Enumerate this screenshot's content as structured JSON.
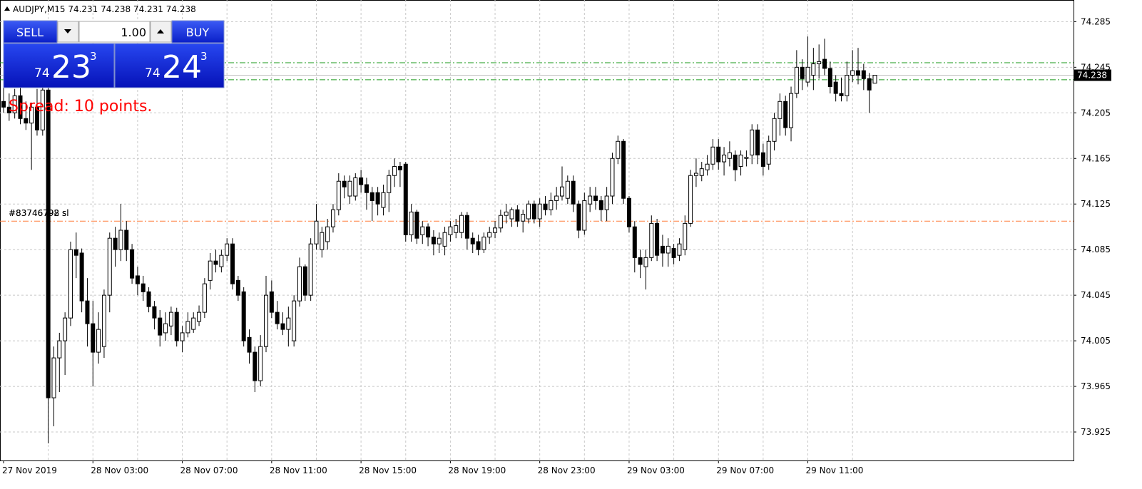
{
  "chart_data": {
    "type": "candlestick",
    "title": "AUDJPY,M15  74.231 74.238 74.231 74.238",
    "categories": [
      "27 Nov 2019",
      null,
      null,
      null,
      null,
      null,
      null,
      null,
      null,
      null,
      null,
      null,
      null,
      null,
      null,
      null,
      "28 Nov 03:00",
      null,
      null,
      null,
      null,
      null,
      null,
      null,
      null,
      null,
      null,
      null,
      null,
      null,
      null,
      null,
      "28 Nov 07:00",
      null,
      null,
      null,
      null,
      null,
      null,
      null,
      null,
      null,
      null,
      null,
      null,
      null,
      null,
      null,
      "28 Nov 11:00",
      null,
      null,
      null,
      null,
      null,
      null,
      null,
      null,
      null,
      null,
      null,
      null,
      null,
      null,
      null,
      "28 Nov 15:00",
      null,
      null,
      null,
      null,
      null,
      null,
      null,
      null,
      null,
      null,
      null,
      null,
      null,
      null,
      null,
      "28 Nov 19:00",
      null,
      null,
      null,
      null,
      null,
      null,
      null,
      null,
      null,
      null,
      null,
      null,
      null,
      null,
      null,
      "28 Nov 23:00",
      null,
      null,
      null,
      null,
      null,
      null,
      null,
      null,
      null,
      null,
      null,
      null,
      null,
      null,
      null,
      "29 Nov 03:00",
      null,
      null,
      null,
      null,
      null,
      null,
      null,
      null,
      null,
      null,
      null,
      null,
      null,
      null,
      null,
      "29 Nov 07:00",
      null,
      null,
      null,
      null,
      null,
      null,
      null,
      null,
      null,
      null,
      null,
      null,
      null,
      null,
      null,
      "29 Nov 11:00",
      null,
      null,
      null,
      null,
      null,
      null,
      null,
      null,
      null,
      null,
      null,
      null
    ],
    "ohlc": [
      [
        74.215,
        74.228,
        74.205,
        74.21
      ],
      [
        74.21,
        74.222,
        74.198,
        74.205
      ],
      [
        74.205,
        74.226,
        74.2,
        74.22
      ],
      [
        74.22,
        74.232,
        74.195,
        74.2
      ],
      [
        74.2,
        74.215,
        74.19,
        74.196
      ],
      [
        74.196,
        74.214,
        74.155,
        74.21
      ],
      [
        74.21,
        74.226,
        74.185,
        74.19
      ],
      [
        74.19,
        74.23,
        74.185,
        74.225
      ],
      [
        74.225,
        74.232,
        73.915,
        73.955
      ],
      [
        73.955,
        74.0,
        73.93,
        73.99
      ],
      [
        73.99,
        74.012,
        73.96,
        74.005
      ],
      [
        74.005,
        74.03,
        73.975,
        74.025
      ],
      [
        74.025,
        74.092,
        74.018,
        74.085
      ],
      [
        74.085,
        74.1,
        74.06,
        74.08
      ],
      [
        74.082,
        74.086,
        74.03,
        74.04
      ],
      [
        74.04,
        74.06,
        74.0,
        74.02
      ],
      [
        74.02,
        74.04,
        73.965,
        73.995
      ],
      [
        73.995,
        74.03,
        73.985,
        74.015
      ],
      [
        74.0,
        74.05,
        73.99,
        74.045
      ],
      [
        74.045,
        74.1,
        74.03,
        74.095
      ],
      [
        74.095,
        74.105,
        74.07,
        74.085
      ],
      [
        74.085,
        74.125,
        74.075,
        74.102
      ],
      [
        74.102,
        74.11,
        74.075,
        74.085
      ],
      [
        74.085,
        74.09,
        74.055,
        74.06
      ],
      [
        74.062,
        74.07,
        74.045,
        74.055
      ],
      [
        74.055,
        74.062,
        74.04,
        74.048
      ],
      [
        74.048,
        74.052,
        74.03,
        74.035
      ],
      [
        74.035,
        74.04,
        74.015,
        74.025
      ],
      [
        74.025,
        74.032,
        74.0,
        74.01
      ],
      [
        74.012,
        74.03,
        74.005,
        74.02
      ],
      [
        74.018,
        74.035,
        74.01,
        74.03
      ],
      [
        74.03,
        74.034,
        74.0,
        74.005
      ],
      [
        74.005,
        74.018,
        73.995,
        74.012
      ],
      [
        74.012,
        74.03,
        74.008,
        74.022
      ],
      [
        74.015,
        74.03,
        74.012,
        74.025
      ],
      [
        74.022,
        74.036,
        74.018,
        74.03
      ],
      [
        74.03,
        74.06,
        74.025,
        74.055
      ],
      [
        74.058,
        74.082,
        74.05,
        74.075
      ],
      [
        74.075,
        74.085,
        74.065,
        74.072
      ],
      [
        74.07,
        74.085,
        74.065,
        74.08
      ],
      [
        74.08,
        74.095,
        74.075,
        74.09
      ],
      [
        74.09,
        74.095,
        74.05,
        74.055
      ],
      [
        74.058,
        74.062,
        74.04,
        74.045
      ],
      [
        74.048,
        74.052,
        74.0,
        74.005
      ],
      [
        74.008,
        74.015,
        73.985,
        73.995
      ],
      [
        73.995,
        74.0,
        73.96,
        73.97
      ],
      [
        73.97,
        74.01,
        73.965,
        74.0
      ],
      [
        74.0,
        74.062,
        73.995,
        74.045
      ],
      [
        74.048,
        74.058,
        74.025,
        74.03
      ],
      [
        74.03,
        74.04,
        74.015,
        74.02
      ],
      [
        74.02,
        74.03,
        74.01,
        74.015
      ],
      [
        74.015,
        74.035,
        74.0,
        74.025
      ],
      [
        74.005,
        74.045,
        74.0,
        74.04
      ],
      [
        74.04,
        74.078,
        74.035,
        74.07
      ],
      [
        74.07,
        74.072,
        74.04,
        74.045
      ],
      [
        74.045,
        74.095,
        74.04,
        74.09
      ],
      [
        74.09,
        74.125,
        74.085,
        74.11
      ],
      [
        74.085,
        74.105,
        74.078,
        74.1
      ],
      [
        74.092,
        74.112,
        74.085,
        74.105
      ],
      [
        74.105,
        74.125,
        74.1,
        74.12
      ],
      [
        74.12,
        74.152,
        74.115,
        74.145
      ],
      [
        74.145,
        74.15,
        74.13,
        74.14
      ],
      [
        74.132,
        74.15,
        74.125,
        74.145
      ],
      [
        74.132,
        74.152,
        74.128,
        74.148
      ],
      [
        74.148,
        74.155,
        74.135,
        74.142
      ],
      [
        74.142,
        74.148,
        74.12,
        74.135
      ],
      [
        74.135,
        74.14,
        74.11,
        74.128
      ],
      [
        74.135,
        74.14,
        74.115,
        74.125
      ],
      [
        74.122,
        74.142,
        74.115,
        74.135
      ],
      [
        74.135,
        74.155,
        74.118,
        74.15
      ],
      [
        74.15,
        74.165,
        74.14,
        74.158
      ],
      [
        74.158,
        74.162,
        74.14,
        74.155
      ],
      [
        74.16,
        74.162,
        74.092,
        74.098
      ],
      [
        74.098,
        74.125,
        74.092,
        74.118
      ],
      [
        74.118,
        74.12,
        74.09,
        74.095
      ],
      [
        74.098,
        74.11,
        74.09,
        74.105
      ],
      [
        74.105,
        74.108,
        74.088,
        74.096
      ],
      [
        74.096,
        74.102,
        74.08,
        74.09
      ],
      [
        74.09,
        74.1,
        74.082,
        74.095
      ],
      [
        74.088,
        74.105,
        74.08,
        74.1
      ],
      [
        74.098,
        74.11,
        74.092,
        74.105
      ],
      [
        74.1,
        74.112,
        74.095,
        74.106
      ],
      [
        74.1,
        74.118,
        74.095,
        74.115
      ],
      [
        74.115,
        74.118,
        74.085,
        74.095
      ],
      [
        74.095,
        74.1,
        74.082,
        74.09
      ],
      [
        74.092,
        74.098,
        74.08,
        74.085
      ],
      [
        74.085,
        74.1,
        74.082,
        74.096
      ],
      [
        74.096,
        74.105,
        74.09,
        74.1
      ],
      [
        74.1,
        74.11,
        74.095,
        74.104
      ],
      [
        74.104,
        74.12,
        74.1,
        74.115
      ],
      [
        74.115,
        74.125,
        74.108,
        74.118
      ],
      [
        74.112,
        74.122,
        74.105,
        74.12
      ],
      [
        74.12,
        74.124,
        74.105,
        74.11
      ],
      [
        74.11,
        74.12,
        74.1,
        74.116
      ],
      [
        74.112,
        74.128,
        74.108,
        74.125
      ],
      [
        74.125,
        74.128,
        74.108,
        74.112
      ],
      [
        74.112,
        74.13,
        74.105,
        74.125
      ],
      [
        74.125,
        74.132,
        74.115,
        74.12
      ],
      [
        74.12,
        74.135,
        74.115,
        74.128
      ],
      [
        74.128,
        74.14,
        74.12,
        74.132
      ],
      [
        74.132,
        74.158,
        74.128,
        74.14
      ],
      [
        74.13,
        74.15,
        74.125,
        74.145
      ],
      [
        74.145,
        74.15,
        74.118,
        74.125
      ],
      [
        74.125,
        74.128,
        74.095,
        74.102
      ],
      [
        74.102,
        74.135,
        74.098,
        74.128
      ],
      [
        74.125,
        74.14,
        74.118,
        74.132
      ],
      [
        74.132,
        74.14,
        74.12,
        74.128
      ],
      [
        74.128,
        74.132,
        74.11,
        74.12
      ],
      [
        74.12,
        74.14,
        74.11,
        74.132
      ],
      [
        74.132,
        74.17,
        74.125,
        74.165
      ],
      [
        74.165,
        74.185,
        74.16,
        74.18
      ],
      [
        74.18,
        74.182,
        74.125,
        74.13
      ],
      [
        74.13,
        74.132,
        74.1,
        74.105
      ],
      [
        74.105,
        74.11,
        74.065,
        74.078
      ],
      [
        74.078,
        74.085,
        74.06,
        74.072
      ],
      [
        74.07,
        74.085,
        74.05,
        74.078
      ],
      [
        74.078,
        74.115,
        74.075,
        74.108
      ],
      [
        74.108,
        74.112,
        74.075,
        74.08
      ],
      [
        74.088,
        74.098,
        74.07,
        74.082
      ],
      [
        74.082,
        74.095,
        74.07,
        74.088
      ],
      [
        74.086,
        74.09,
        74.072,
        74.078
      ],
      [
        74.08,
        74.095,
        74.075,
        74.09
      ],
      [
        74.085,
        74.115,
        74.08,
        74.108
      ],
      [
        74.108,
        74.155,
        74.105,
        74.15
      ],
      [
        74.15,
        74.165,
        74.14,
        74.152
      ],
      [
        74.15,
        74.162,
        74.145,
        74.156
      ],
      [
        74.155,
        74.168,
        74.15,
        74.16
      ],
      [
        74.16,
        74.182,
        74.155,
        74.175
      ],
      [
        74.175,
        74.182,
        74.155,
        74.162
      ],
      [
        74.162,
        74.175,
        74.15,
        74.168
      ],
      [
        74.165,
        74.18,
        74.158,
        74.17
      ],
      [
        74.168,
        74.172,
        74.145,
        74.155
      ],
      [
        74.158,
        74.172,
        74.15,
        74.168
      ],
      [
        74.165,
        74.172,
        74.158,
        74.166
      ],
      [
        74.168,
        74.195,
        74.16,
        74.19
      ],
      [
        74.19,
        74.195,
        74.16,
        74.168
      ],
      [
        74.17,
        74.178,
        74.15,
        74.158
      ],
      [
        74.16,
        74.185,
        74.155,
        74.18
      ],
      [
        74.18,
        74.205,
        74.172,
        74.2
      ],
      [
        74.2,
        74.222,
        74.185,
        74.215
      ],
      [
        74.215,
        74.22,
        74.185,
        74.192
      ],
      [
        74.192,
        74.228,
        74.18,
        74.222
      ],
      [
        74.222,
        74.26,
        74.218,
        74.245
      ],
      [
        74.245,
        74.252,
        74.225,
        74.235
      ],
      [
        74.232,
        74.272,
        74.228,
        74.245
      ],
      [
        74.238,
        74.262,
        74.225,
        74.248
      ],
      [
        74.248,
        74.265,
        74.235,
        74.25
      ],
      [
        74.252,
        74.27,
        74.238,
        74.244
      ],
      [
        74.244,
        74.25,
        74.222,
        74.228
      ],
      [
        74.232,
        74.238,
        74.215,
        74.222
      ],
      [
        74.222,
        74.236,
        74.215,
        74.22
      ],
      [
        74.22,
        74.25,
        74.215,
        74.238
      ],
      [
        74.238,
        74.26,
        74.232,
        74.242
      ],
      [
        74.242,
        74.262,
        74.23,
        74.238
      ],
      [
        74.242,
        74.248,
        74.225,
        74.235
      ],
      [
        74.235,
        74.24,
        74.205,
        74.225
      ],
      [
        74.231,
        74.238,
        74.231,
        74.238
      ]
    ],
    "ylim": [
      73.9,
      74.304
    ],
    "yticks": [
      74.285,
      74.245,
      74.205,
      74.165,
      74.125,
      74.085,
      74.045,
      74.005,
      73.965,
      73.925
    ],
    "grid": true,
    "current_price": 74.238,
    "levels": [
      {
        "value": 74.249,
        "color": "#1a9a1a"
      },
      {
        "value": 74.234,
        "color": "#1a9a1a"
      },
      {
        "value": 74.11,
        "color": "#ff7f3f"
      }
    ],
    "order_labels": [
      "#83746792 sl",
      "#83746798 sl"
    ],
    "trade_panel": {
      "sell": "SELL",
      "buy": "BUY",
      "lot": "1.00",
      "bid": {
        "big": "74",
        "pips": "23",
        "point": "3"
      },
      "ask": {
        "big": "74",
        "pips": "24",
        "point": "3"
      }
    },
    "spread": "Spread: 10 points."
  }
}
